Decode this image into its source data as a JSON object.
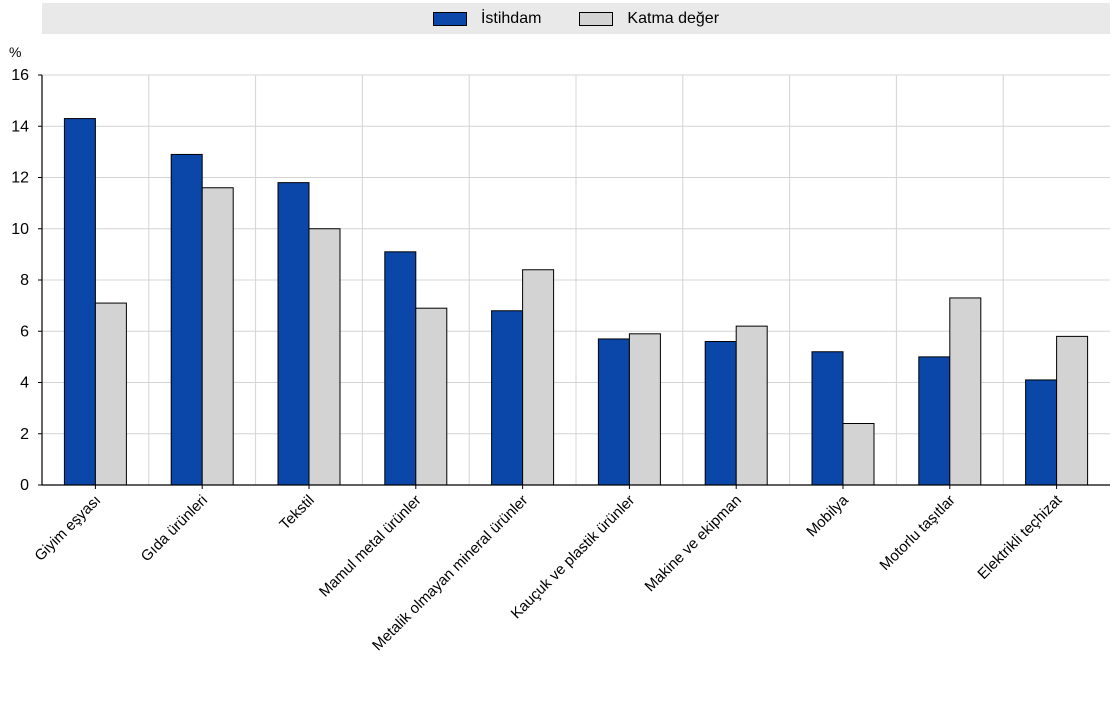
{
  "chart_data": {
    "type": "bar",
    "unit_label": "%",
    "categories": [
      "Giyim eşyası",
      "Gıda ürünleri",
      "Tekstil",
      "Mamul metal ürünler",
      "Metalik olmayan mineral ürünler",
      "Kauçuk ve plastik ürünler",
      "Makine ve ekipman",
      "Mobilya",
      "Motorlu taşıtlar",
      "Elektrikli teçhizat"
    ],
    "series": [
      {
        "name": "İstihdam",
        "color": "#0a47a8",
        "values": [
          14.3,
          12.9,
          11.8,
          9.1,
          6.8,
          5.7,
          5.6,
          5.2,
          5.0,
          4.1
        ]
      },
      {
        "name": "Katma değer",
        "color": "#d3d3d3",
        "values": [
          7.1,
          11.6,
          10.0,
          6.9,
          8.4,
          5.9,
          6.2,
          2.4,
          7.3,
          5.8
        ]
      }
    ],
    "ylim": [
      0,
      16
    ],
    "yticks": [
      0,
      2,
      4,
      6,
      8,
      10,
      12,
      14,
      16
    ],
    "grid": true,
    "legend_position": "top"
  }
}
